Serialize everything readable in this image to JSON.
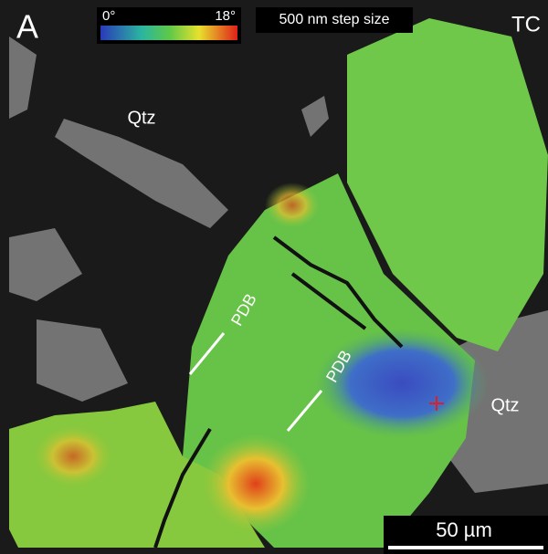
{
  "panel_label": "A",
  "color_scale": {
    "min_label": "0°",
    "max_label": "18°"
  },
  "step_size": "500 nm step size",
  "sample_label": "TC",
  "mineral_labels": [
    "Qtz",
    "Qtz"
  ],
  "feature_labels": [
    "PDB",
    "PDB"
  ],
  "scale_bar": "50 µm"
}
